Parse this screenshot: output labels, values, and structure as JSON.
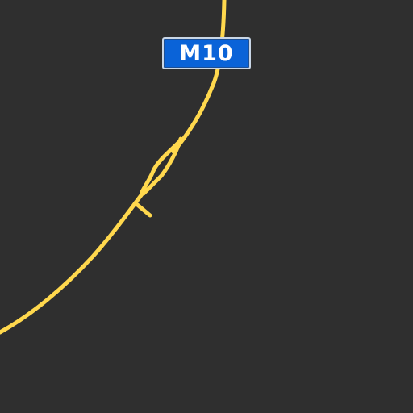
{
  "map": {
    "background_color": "#2f2f2f",
    "road_color": "#ffd84d",
    "route_shield": {
      "label": "M10",
      "color": "#0a63d8",
      "text_color": "#ffffff"
    }
  }
}
